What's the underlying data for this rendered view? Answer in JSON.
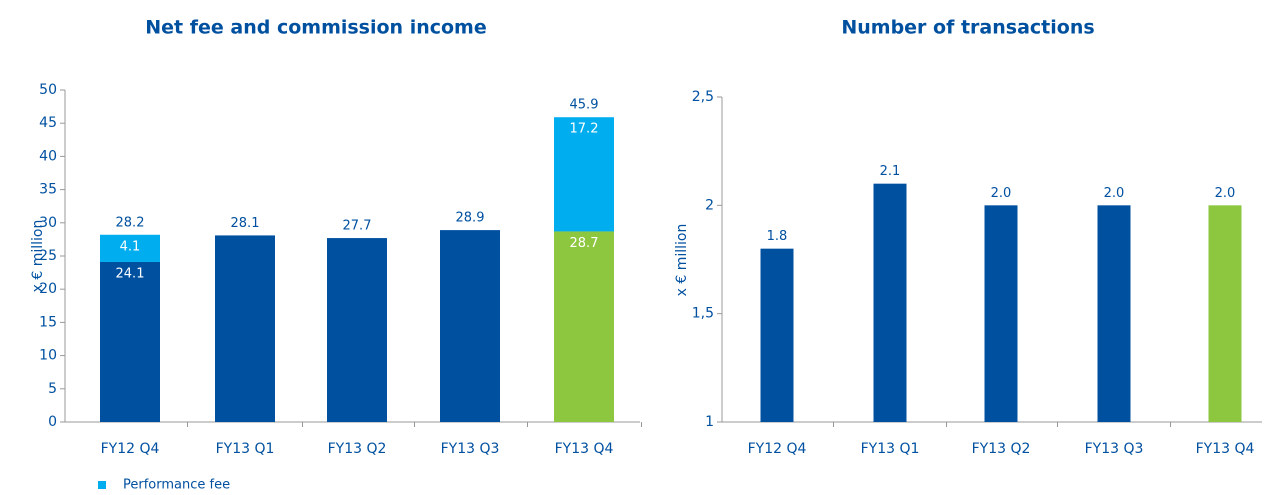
{
  "chart_data": [
    {
      "type": "stacked_bar",
      "title": "Net fee and commission income",
      "ylabel": "x € million",
      "categories": [
        "FY12 Q4",
        "FY13 Q1",
        "FY13 Q2",
        "FY13 Q3",
        "FY13 Q4"
      ],
      "series": [
        {
          "color": "#0050a0",
          "colors": [
            "#0050a0",
            "#0050a0",
            "#0050a0",
            "#0050a0",
            "#8dc63f"
          ],
          "values": [
            24.1,
            28.1,
            27.7,
            28.9,
            28.7
          ]
        },
        {
          "name": "Performance fee",
          "color": "#00aeef",
          "values": [
            4.1,
            null,
            null,
            null,
            17.2
          ]
        }
      ],
      "totals": [
        28.2,
        null,
        null,
        null,
        45.9
      ],
      "ylim": [
        0,
        50
      ],
      "yticks": [
        0,
        5,
        10,
        15,
        20,
        25,
        30,
        35,
        40,
        45,
        50
      ]
    },
    {
      "type": "bar",
      "title": "Number of transactions",
      "ylabel": "x € million",
      "categories": [
        "FY12 Q4",
        "FY13 Q1",
        "FY13 Q2",
        "FY13 Q3",
        "FY13 Q4"
      ],
      "series": [
        {
          "color": "#0050a0",
          "colors": [
            "#0050a0",
            "#0050a0",
            "#0050a0",
            "#0050a0",
            "#8dc63f"
          ],
          "values": [
            1.8,
            2.1,
            2.0,
            2.0,
            2.0
          ],
          "value_labels": [
            "1.8",
            "2.1",
            "2.0",
            "2.0",
            "2.0"
          ]
        }
      ],
      "ylim": [
        1,
        2.5
      ],
      "yticks": [
        1,
        {
          "value": 1.5,
          "label": "1,5"
        },
        2,
        {
          "value": 2.5,
          "label": "2,5"
        }
      ]
    }
  ]
}
